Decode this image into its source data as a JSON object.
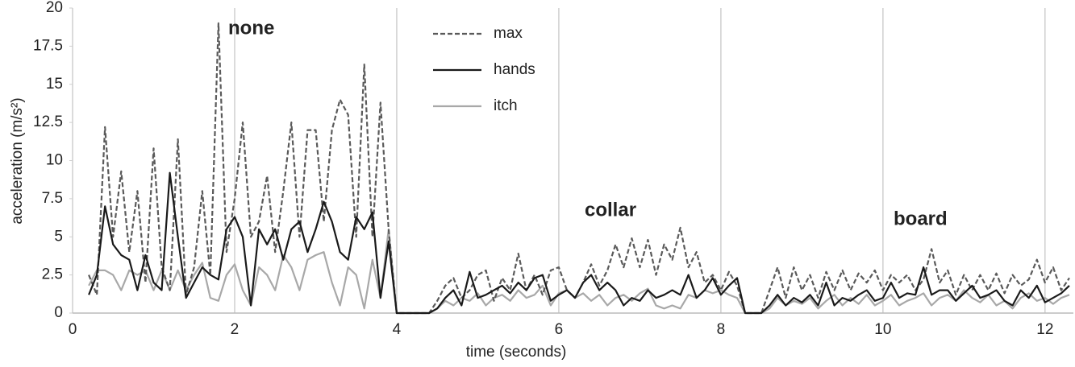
{
  "chart_data": {
    "type": "line",
    "x_label": "time (seconds)",
    "y_label": "acceleration (m/s²)",
    "annotations": [
      "none",
      "collar",
      "board"
    ],
    "xlim": [
      0,
      12.35
    ],
    "xticks": [
      0,
      2,
      4,
      6,
      8,
      10,
      12
    ],
    "ylim": [
      0,
      20
    ],
    "yticks": [
      0,
      2.5,
      5,
      7.5,
      10,
      12.5,
      15,
      17.5,
      20
    ],
    "grid": "x",
    "x": [
      0.2,
      0.3,
      0.4,
      0.5,
      0.6,
      0.7,
      0.8,
      0.9,
      1.0,
      1.1,
      1.2,
      1.3,
      1.4,
      1.5,
      1.6,
      1.7,
      1.8,
      1.9,
      2.0,
      2.1,
      2.2,
      2.3,
      2.4,
      2.5,
      2.6,
      2.7,
      2.8,
      2.9,
      3.0,
      3.1,
      3.2,
      3.3,
      3.4,
      3.5,
      3.6,
      3.7,
      3.8,
      3.9,
      4.0,
      4.1,
      4.2,
      4.3,
      4.4,
      4.5,
      4.6,
      4.7,
      4.8,
      4.9,
      5.0,
      5.1,
      5.2,
      5.3,
      5.4,
      5.5,
      5.6,
      5.7,
      5.8,
      5.9,
      6.0,
      6.1,
      6.2,
      6.3,
      6.4,
      6.5,
      6.6,
      6.7,
      6.8,
      6.9,
      7.0,
      7.1,
      7.2,
      7.3,
      7.4,
      7.5,
      7.6,
      7.7,
      7.8,
      7.9,
      8.0,
      8.1,
      8.2,
      8.3,
      8.4,
      8.5,
      8.6,
      8.7,
      8.8,
      8.9,
      9.0,
      9.1,
      9.2,
      9.3,
      9.4,
      9.5,
      9.6,
      9.7,
      9.8,
      9.9,
      10.0,
      10.1,
      10.2,
      10.3,
      10.4,
      10.5,
      10.6,
      10.7,
      10.8,
      10.9,
      11.0,
      11.1,
      11.2,
      11.3,
      11.4,
      11.5,
      11.6,
      11.7,
      11.8,
      11.9,
      12.0,
      12.1,
      12.2,
      12.3
    ],
    "series": [
      {
        "name": "max",
        "color": "#5a5a5a",
        "line_style": "dashed",
        "values": [
          2.5,
          1.2,
          12.2,
          5,
          9.3,
          4,
          8,
          2,
          10.8,
          3,
          1.5,
          11.4,
          1.2,
          3,
          8,
          2.5,
          19,
          4,
          7.5,
          12.5,
          5,
          6,
          9,
          4,
          8,
          12.5,
          5,
          12,
          12,
          6,
          12,
          14,
          13,
          5,
          16.3,
          5,
          13.8,
          5.5,
          0,
          0,
          0,
          0,
          0,
          0.8,
          1.8,
          2.3,
          1,
          1.5,
          2.5,
          2.8,
          0.8,
          2.3,
          1.5,
          3.9,
          1.5,
          2.5,
          1.2,
          2.8,
          3,
          1.5,
          1,
          2,
          3.2,
          1.8,
          2.8,
          4.5,
          3,
          4.9,
          3,
          4.8,
          2.5,
          4.5,
          3.5,
          5.6,
          3,
          4,
          2,
          2.5,
          1.5,
          2.7,
          1.8,
          0,
          0,
          0,
          1.5,
          3,
          1,
          3,
          1.5,
          2.5,
          1,
          2.7,
          1.5,
          2.8,
          1.5,
          2.6,
          2,
          2.8,
          1.5,
          2.5,
          2,
          2.5,
          1.5,
          2.2,
          4.2,
          2,
          2.8,
          1.2,
          2.5,
          1.5,
          2.5,
          1.5,
          2.6,
          1.3,
          2.5,
          1.8,
          2.2,
          3.5,
          2,
          3,
          1.5,
          2.3
        ]
      },
      {
        "name": "hands",
        "color": "#1a1a1a",
        "line_style": "solid",
        "values": [
          1.2,
          2.5,
          7,
          4.5,
          3.8,
          3.5,
          1.5,
          3.8,
          2,
          1.5,
          9.2,
          5,
          1,
          2,
          3,
          2.5,
          2.2,
          5.5,
          6.3,
          5,
          0.5,
          5.5,
          4.5,
          5.5,
          3.5,
          5.5,
          6,
          4,
          5.5,
          7.3,
          6,
          4,
          3.5,
          6.3,
          5.5,
          6.6,
          1,
          4.7,
          0,
          0,
          0,
          0,
          0,
          0.3,
          1,
          1.5,
          0.5,
          2.7,
          1,
          1.2,
          1.5,
          1.8,
          1.3,
          2,
          1.5,
          2.3,
          2.5,
          0.8,
          1.2,
          1.5,
          1,
          2,
          2.5,
          1.5,
          2,
          1.5,
          0.5,
          1,
          0.8,
          1.5,
          1,
          1.2,
          1.5,
          1.2,
          2.5,
          1,
          1.5,
          2.3,
          1.2,
          1.8,
          2.3,
          0,
          0,
          0,
          0.5,
          1.2,
          0.5,
          1,
          0.7,
          1.2,
          0.5,
          2,
          0.5,
          1,
          0.8,
          1.2,
          1.5,
          0.8,
          1,
          2,
          1,
          1.3,
          1.2,
          3,
          1.2,
          1.5,
          1.5,
          0.8,
          1.3,
          1.8,
          1,
          1.2,
          1.5,
          0.8,
          0.5,
          1.5,
          1,
          1.8,
          0.7,
          1,
          1.3,
          1.8
        ]
      },
      {
        "name": "itch",
        "color": "#a8a8a8",
        "line_style": "solid",
        "values": [
          1.8,
          2.8,
          2.8,
          2.5,
          1.5,
          2.8,
          2.5,
          2.8,
          1.5,
          2.8,
          1.5,
          2.8,
          1.5,
          2.5,
          3.3,
          1,
          0.8,
          2.5,
          3.2,
          1.5,
          0.5,
          3,
          2.5,
          1.5,
          3.8,
          3,
          1.5,
          3.5,
          3.8,
          4,
          2,
          0.5,
          3,
          2.5,
          0.3,
          3.5,
          1,
          5.5,
          0,
          0,
          0,
          0,
          0,
          0.3,
          0.8,
          0.5,
          1,
          0.8,
          1.3,
          0.5,
          1,
          1.2,
          0.8,
          1.5,
          1,
          1.2,
          1.8,
          0.5,
          1.3,
          1.5,
          1,
          1.3,
          0.8,
          1.2,
          0.5,
          1,
          1.2,
          0.8,
          1.3,
          1.6,
          0.5,
          0.3,
          0.5,
          0.3,
          1.2,
          1,
          1.5,
          1.3,
          1.5,
          1.2,
          1,
          0,
          0,
          0,
          0.3,
          1,
          0.5,
          0.8,
          0.6,
          1,
          0.3,
          0.8,
          1.2,
          0.5,
          1,
          0.6,
          1.2,
          0.5,
          0.8,
          1.2,
          0.5,
          0.8,
          1,
          1.3,
          0.5,
          1,
          1.2,
          0.8,
          1.5,
          1,
          0.7,
          1.2,
          0.5,
          0.8,
          0.3,
          1,
          1.3,
          0.8,
          1,
          0.6,
          1,
          1.2
        ]
      }
    ]
  }
}
